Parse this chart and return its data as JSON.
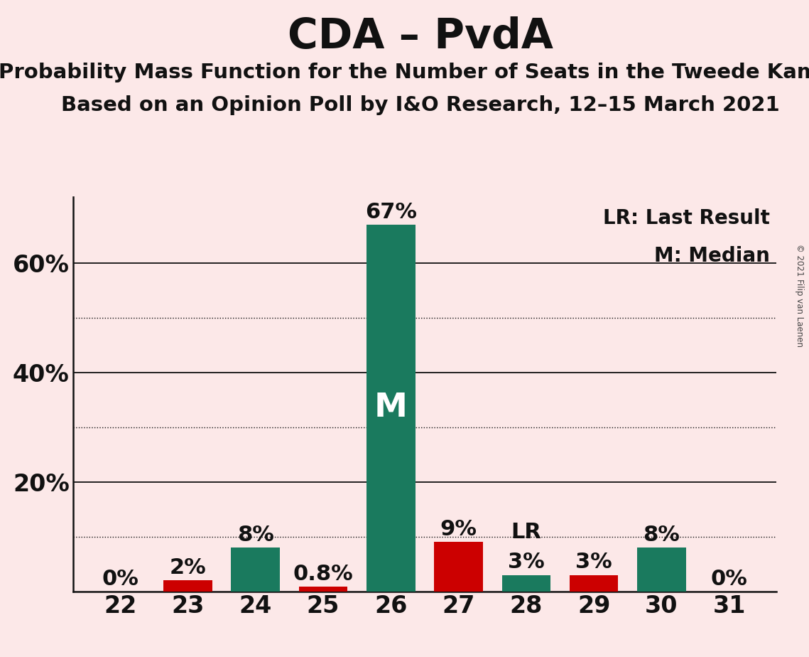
{
  "title": "CDA – PvdA",
  "subtitle1": "Probability Mass Function for the Number of Seats in the Tweede Kamer",
  "subtitle2": "Based on an Opinion Poll by I&O Research, 12–15 March 2021",
  "copyright": "© 2021 Filip van Laenen",
  "seats": [
    22,
    23,
    24,
    25,
    26,
    27,
    28,
    29,
    30,
    31
  ],
  "probabilities": [
    0.0,
    2.0,
    8.0,
    0.8,
    67.0,
    9.0,
    3.0,
    3.0,
    8.0,
    0.0
  ],
  "bar_colors": [
    "#1a7a5e",
    "#cc0000",
    "#1a7a5e",
    "#cc0000",
    "#1a7a5e",
    "#cc0000",
    "#1a7a5e",
    "#cc0000",
    "#1a7a5e",
    "#1a7a5e"
  ],
  "median_seat": 26,
  "last_result_seat": 28,
  "label_LR": "LR",
  "label_M": "M",
  "legend_lr": "LR: Last Result",
  "legend_m": "M: Median",
  "background_color": "#fce8e8",
  "bar_width": 0.72,
  "ylim": [
    0,
    72
  ],
  "solid_gridlines": [
    20.0,
    40.0,
    60.0
  ],
  "dotted_gridlines": [
    10.0,
    30.0,
    50.0
  ],
  "bar_label_fontsize": 22,
  "title_fontsize": 42,
  "subtitle_fontsize": 21,
  "tick_fontsize": 24,
  "legend_fontsize": 20
}
